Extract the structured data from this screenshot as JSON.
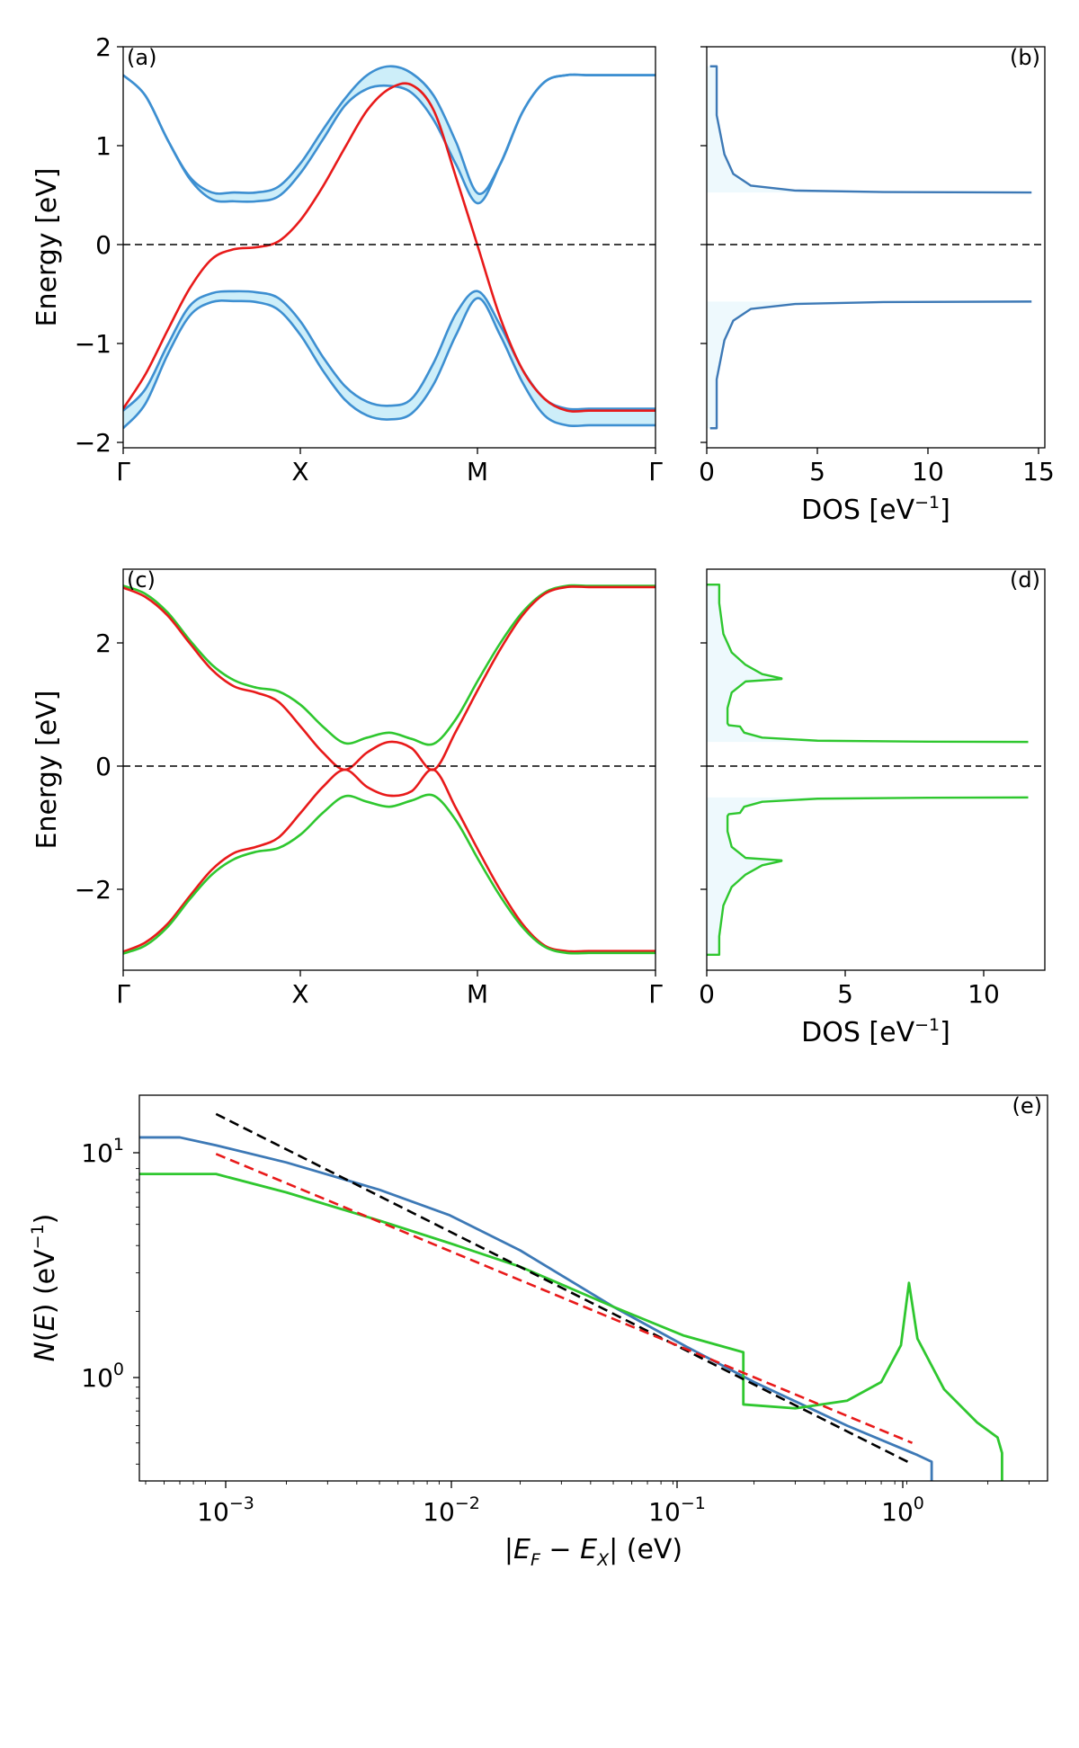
{
  "chart_data": [
    {
      "type": "line",
      "panel": "(a)",
      "title": "",
      "xlabel": "",
      "ylabel": "Energy [eV]",
      "xticks": [
        "Γ",
        "X",
        "M",
        "Γ"
      ],
      "ylim": [
        -2.05,
        2.05
      ],
      "yticks": [
        2,
        1,
        0,
        -1,
        -2
      ],
      "ytick_labels": [
        "2",
        "1",
        "0",
        "−1",
        "−2"
      ],
      "k_points": [
        0,
        0.5,
        1,
        1.5,
        2,
        2.5,
        3,
        3.5,
        4,
        4.5,
        5,
        5.5,
        6,
        6.5,
        7,
        7.5,
        8,
        8.5,
        9,
        9.5,
        10,
        10.5,
        11,
        11.5,
        12
      ],
      "series": [
        {
          "name": "conduction band upper",
          "color": "#3d8fd1",
          "values": [
            1.76,
            1.55,
            1.1,
            0.72,
            0.56,
            0.56,
            0.56,
            0.62,
            0.86,
            1.2,
            1.52,
            1.76,
            1.85,
            1.78,
            1.55,
            1.08,
            0.55,
            0.85,
            1.38,
            1.69,
            1.76,
            1.76,
            1.76,
            1.76,
            1.76
          ]
        },
        {
          "name": "conduction band lower",
          "color": "#3d8fd1",
          "values": [
            1.76,
            1.55,
            1.1,
            0.7,
            0.49,
            0.47,
            0.47,
            0.52,
            0.76,
            1.1,
            1.45,
            1.62,
            1.65,
            1.58,
            1.3,
            0.85,
            0.45,
            0.85,
            1.38,
            1.69,
            1.76,
            1.76,
            1.76,
            1.76,
            1.76
          ]
        },
        {
          "name": "valence band upper",
          "color": "#3d8fd1",
          "values": [
            -1.67,
            -1.45,
            -1.0,
            -0.6,
            -0.47,
            -0.45,
            -0.46,
            -0.52,
            -0.76,
            -1.12,
            -1.42,
            -1.58,
            -1.62,
            -1.55,
            -1.18,
            -0.68,
            -0.45,
            -0.8,
            -1.25,
            -1.55,
            -1.65,
            -1.65,
            -1.65,
            -1.65,
            -1.65
          ]
        },
        {
          "name": "valence band lower",
          "color": "#3d8fd1",
          "values": [
            -1.85,
            -1.6,
            -1.1,
            -0.7,
            -0.56,
            -0.55,
            -0.56,
            -0.64,
            -0.9,
            -1.26,
            -1.56,
            -1.72,
            -1.76,
            -1.7,
            -1.4,
            -0.9,
            -0.52,
            -0.9,
            -1.38,
            -1.72,
            -1.82,
            -1.82,
            -1.82,
            -1.82,
            -1.82
          ]
        },
        {
          "name": "red band",
          "color": "#e81a1a",
          "values": [
            -1.65,
            -1.3,
            -0.85,
            -0.42,
            -0.12,
            -0.02,
            0.0,
            0.06,
            0.28,
            0.62,
            1.02,
            1.4,
            1.62,
            1.66,
            1.4,
            0.72,
            0.0,
            -0.72,
            -1.25,
            -1.55,
            -1.67,
            -1.67,
            -1.67,
            -1.67,
            -1.67
          ]
        }
      ],
      "annotations": [
        "dashed line at E = 0"
      ]
    },
    {
      "type": "line",
      "panel": "(b)",
      "title": "",
      "xlabel": "DOS [eV⁻¹]",
      "ylabel": "",
      "xlim": [
        0,
        15.3
      ],
      "xticks": [
        0,
        5,
        10,
        15
      ],
      "ylim": [
        -2.05,
        2.05
      ],
      "series": [
        {
          "name": "DOS conduction",
          "color": "#3d79b6",
          "x": [
            0.15,
            0.45,
            0.45,
            0.8,
            1.2,
            2,
            4,
            8,
            14.7
          ],
          "y": [
            1.85,
            1.85,
            1.35,
            0.95,
            0.75,
            0.63,
            0.58,
            0.565,
            0.56
          ]
        },
        {
          "name": "DOS valence",
          "color": "#3d79b6",
          "x": [
            0.15,
            0.45,
            0.45,
            0.8,
            1.2,
            2,
            4,
            8,
            14.7
          ],
          "y": [
            -1.85,
            -1.85,
            -1.35,
            -0.95,
            -0.75,
            -0.63,
            -0.58,
            -0.56,
            -0.555
          ]
        }
      ],
      "annotations": [
        "dashed line at E = 0"
      ]
    },
    {
      "type": "line",
      "panel": "(c)",
      "title": "",
      "xlabel": "",
      "ylabel": "Energy [eV]",
      "xticks": [
        "Γ",
        "X",
        "M",
        "Γ"
      ],
      "ylim": [
        -3.25,
        3.25
      ],
      "yticks": [
        2,
        0,
        -2
      ],
      "ytick_labels": [
        "2",
        "0",
        "−2"
      ],
      "k_points": [
        0,
        0.5,
        1,
        1.5,
        2,
        2.5,
        3,
        3.5,
        4,
        4.5,
        5,
        5.5,
        6,
        6.5,
        7,
        7.5,
        8,
        8.5,
        9,
        9.5,
        10,
        10.5,
        11,
        11.5,
        12
      ],
      "series": [
        {
          "name": "green upper",
          "color": "#2fc72f",
          "values": [
            2.98,
            2.85,
            2.55,
            2.1,
            1.7,
            1.45,
            1.33,
            1.27,
            1.05,
            0.7,
            0.43,
            0.52,
            0.6,
            0.5,
            0.42,
            0.82,
            1.45,
            2.05,
            2.55,
            2.87,
            2.98,
            2.98,
            2.98,
            2.98,
            2.98
          ]
        },
        {
          "name": "red upper",
          "color": "#e81a1a",
          "values": [
            2.95,
            2.8,
            2.5,
            2.05,
            1.62,
            1.35,
            1.25,
            1.1,
            0.7,
            0.28,
            0.0,
            0.28,
            0.45,
            0.35,
            0.0,
            0.62,
            1.3,
            1.95,
            2.5,
            2.85,
            2.96,
            2.96,
            2.96,
            2.96,
            2.96
          ]
        },
        {
          "name": "red lower",
          "color": "#e81a1a",
          "values": [
            -2.95,
            -2.8,
            -2.5,
            -2.05,
            -1.62,
            -1.35,
            -1.25,
            -1.1,
            -0.7,
            -0.28,
            0.0,
            -0.28,
            -0.42,
            -0.35,
            0.0,
            -0.62,
            -1.3,
            -1.95,
            -2.5,
            -2.85,
            -2.94,
            -2.94,
            -2.94,
            -2.94,
            -2.94
          ]
        },
        {
          "name": "green lower",
          "color": "#2fc72f",
          "values": [
            -2.98,
            -2.85,
            -2.55,
            -2.1,
            -1.7,
            -1.45,
            -1.33,
            -1.27,
            -1.05,
            -0.7,
            -0.43,
            -0.52,
            -0.6,
            -0.5,
            -0.42,
            -0.82,
            -1.45,
            -2.05,
            -2.55,
            -2.87,
            -2.97,
            -2.97,
            -2.97,
            -2.97,
            -2.97
          ]
        }
      ],
      "annotations": [
        "dashed line at E = 0"
      ]
    },
    {
      "type": "line",
      "panel": "(d)",
      "title": "",
      "xlabel": "DOS [eV⁻¹]",
      "ylabel": "",
      "xlim": [
        0,
        12.2
      ],
      "xticks": [
        0,
        5,
        10
      ],
      "ylim": [
        -3.25,
        3.25
      ],
      "series": [
        {
          "name": "DOS upper",
          "color": "#2fc72f",
          "x": [
            0.0,
            0.45,
            0.45,
            0.6,
            0.9,
            1.4,
            2.0,
            2.7,
            2.7,
            1.4,
            0.9,
            0.75,
            0.75,
            0.8,
            1.2,
            1.35,
            2.0,
            4.0,
            8.0,
            11.6
          ],
          "y": [
            3.0,
            3.0,
            2.7,
            2.2,
            1.9,
            1.7,
            1.55,
            1.48,
            1.47,
            1.43,
            1.25,
            1.0,
            0.75,
            0.72,
            0.7,
            0.6,
            0.52,
            0.47,
            0.455,
            0.45
          ]
        },
        {
          "name": "DOS lower",
          "color": "#2fc72f",
          "x": [
            0.0,
            0.45,
            0.45,
            0.6,
            0.9,
            1.4,
            2.0,
            2.7,
            2.7,
            1.4,
            0.9,
            0.75,
            0.75,
            0.8,
            1.2,
            1.35,
            2.0,
            4.0,
            8.0,
            11.6
          ],
          "y": [
            -3.0,
            -3.0,
            -2.7,
            -2.2,
            -1.9,
            -1.7,
            -1.55,
            -1.48,
            -1.47,
            -1.43,
            -1.25,
            -1.0,
            -0.75,
            -0.72,
            -0.7,
            -0.6,
            -0.52,
            -0.47,
            -0.455,
            -0.45
          ]
        }
      ],
      "annotations": [
        "dashed line at E = 0"
      ]
    },
    {
      "type": "line",
      "panel": "(e)",
      "title": "",
      "xlabel": "|E_F − E_X| (eV)",
      "ylabel": "N(E) (eV⁻¹)",
      "xscale": "log",
      "yscale": "log",
      "xlim": [
        0.00047,
        3.6
      ],
      "ylim": [
        0.335,
        19.5
      ],
      "xtick_labels": [
        {
          "base": "10",
          "exp": "−3",
          "value": 0.001
        },
        {
          "base": "10",
          "exp": "−2",
          "value": 0.01
        },
        {
          "base": "10",
          "exp": "−1",
          "value": 0.1
        },
        {
          "base": "10",
          "exp": "0",
          "value": 1
        }
      ],
      "ytick_labels": [
        {
          "base": "10",
          "exp": "1",
          "value": 10
        },
        {
          "base": "10",
          "exp": "0",
          "value": 1
        }
      ],
      "series": [
        {
          "name": "blue DOS",
          "color": "#3d79b6",
          "style": "solid",
          "x": [
            0.00047,
            0.0007,
            0.001,
            0.002,
            0.005,
            0.01,
            0.02,
            0.05,
            0.1,
            0.2,
            0.5,
            1.0,
            1.15,
            1.15
          ],
          "y": [
            12.5,
            12.5,
            11.5,
            9.6,
            7.2,
            5.5,
            3.8,
            2.1,
            1.4,
            0.95,
            0.6,
            0.44,
            0.41,
            0.335
          ]
        },
        {
          "name": "green DOS",
          "color": "#2fc72f",
          "style": "solid",
          "x": [
            0.00047,
            0.001,
            0.002,
            0.005,
            0.01,
            0.02,
            0.05,
            0.1,
            0.18,
            0.18,
            0.3,
            0.5,
            0.7,
            0.85,
            0.92,
            1.0,
            1.3,
            1.8,
            2.2,
            2.3,
            2.3
          ],
          "y": [
            8.5,
            8.5,
            7.0,
            5.2,
            4.1,
            3.2,
            2.1,
            1.55,
            1.3,
            0.75,
            0.72,
            0.78,
            0.95,
            1.4,
            2.7,
            1.5,
            0.88,
            0.62,
            0.53,
            0.45,
            0.335
          ]
        },
        {
          "name": "black fit",
          "color": "#000000",
          "style": "dashed",
          "x": [
            0.001,
            0.95
          ],
          "y": [
            16.0,
            0.4
          ]
        },
        {
          "name": "red fit",
          "color": "#e81a1a",
          "style": "dashed",
          "x": [
            0.001,
            0.95
          ],
          "y": [
            10.5,
            0.5
          ]
        }
      ]
    }
  ],
  "labels": {
    "a": "(a)",
    "b": "(b)",
    "c": "(c)",
    "d": "(d)",
    "e": "(e)",
    "energy_a": "Energy [eV]",
    "energy_c": "Energy [eV]",
    "dos_prefix": "DOS [eV",
    "dos_exp": "−1",
    "dos_suffix": "]",
    "ne_N": "N",
    "ne_open": "(",
    "ne_E": "E",
    "ne_mid": ") (eV",
    "ne_exp": "−1",
    "ne_close": ")",
    "ex_bar1": "|",
    "ex_E1": "E",
    "ex_sub1": "F",
    "ex_minus": " − ",
    "ex_E2": "E",
    "ex_sub2": "X",
    "ex_bar2": "|",
    "ex_unit": " (eV)"
  },
  "ticks": {
    "kpath": [
      "Γ",
      "X",
      "M",
      "Γ"
    ],
    "a_y": [
      "2",
      "1",
      "0",
      "−1",
      "−2"
    ],
    "c_y": [
      "2",
      "0",
      "−2"
    ],
    "b_x": [
      "0",
      "5",
      "10",
      "15"
    ],
    "d_x": [
      "0",
      "5",
      "10"
    ]
  },
  "colors": {
    "blue_line": "#3d8fd1",
    "blue_fill": "#cdeef9",
    "dos_blue": "#3d79b6",
    "dos_fill": "#eef9fd",
    "red": "#e81a1a",
    "green": "#2fc72f",
    "black": "#000000"
  }
}
